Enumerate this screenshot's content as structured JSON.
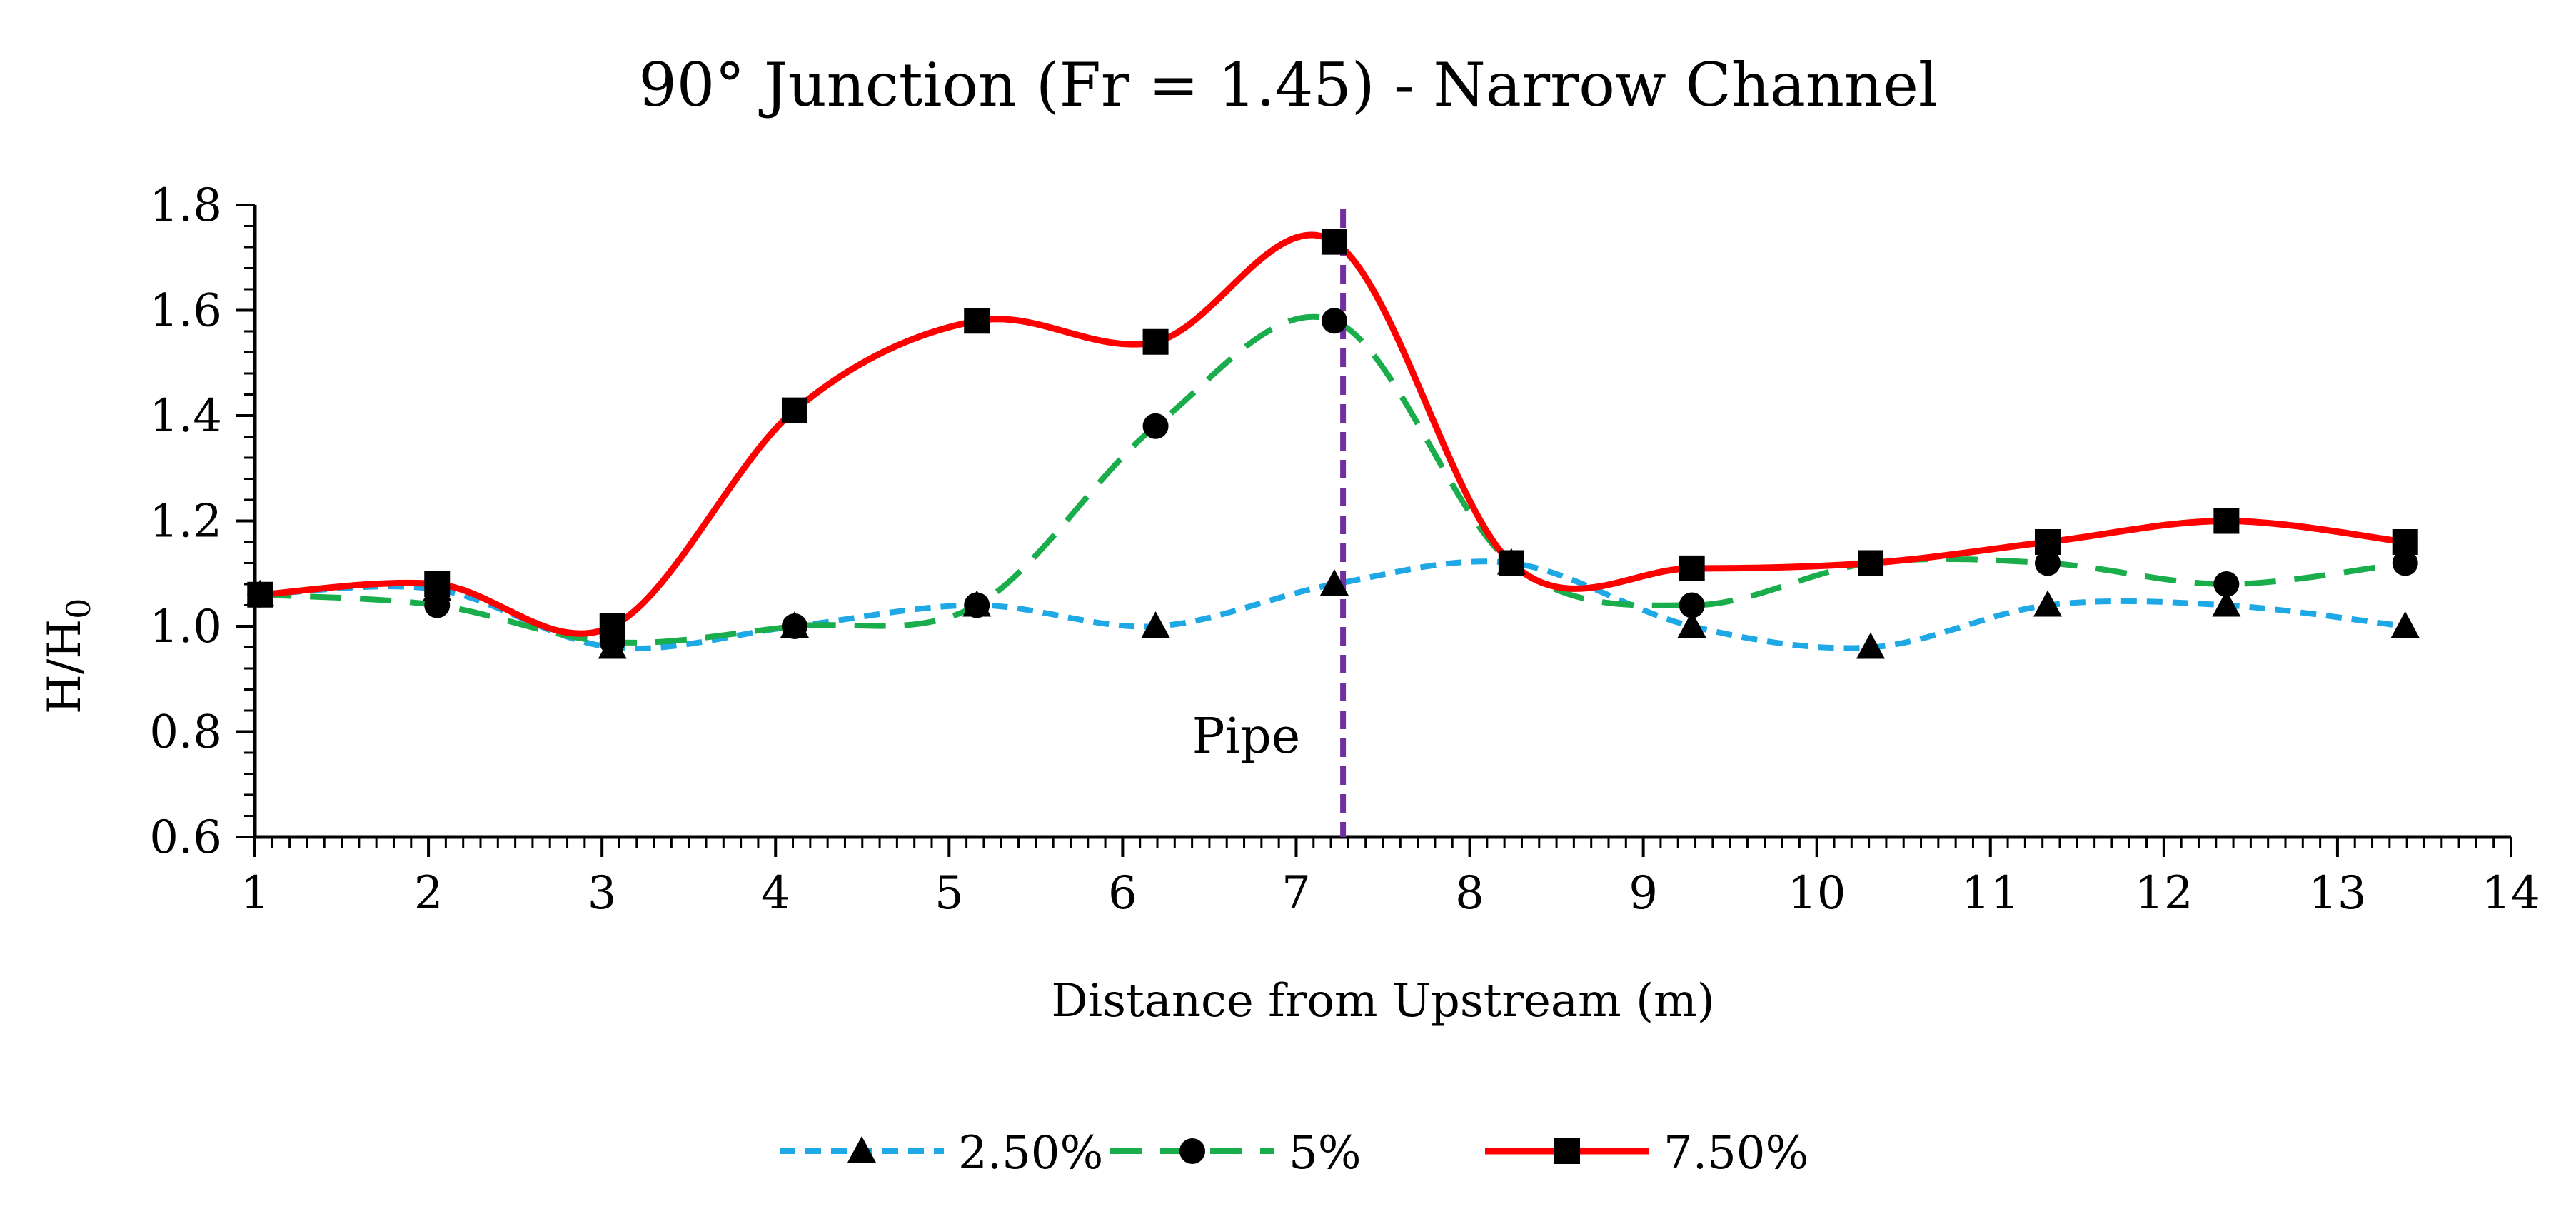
{
  "chart_data": {
    "type": "line",
    "title": "90° Junction (Fr = 1.45) - Narrow Channel",
    "xlabel": "Distance from Upstream (m)",
    "ylabel_main": "H/H",
    "ylabel_sub": "0",
    "xlim": [
      1,
      14
    ],
    "ylim": [
      0.6,
      1.8
    ],
    "xticks": [
      1,
      2,
      3,
      4,
      5,
      6,
      7,
      8,
      9,
      10,
      11,
      12,
      13,
      14
    ],
    "yticks": [
      "0.6",
      "0.8",
      "1.0",
      "1.2",
      "1.4",
      "1.6",
      "1.8"
    ],
    "grid": false,
    "legend_position": "bottom",
    "series": [
      {
        "name": "2.50%",
        "color": "#1ea8e6",
        "style": "dotted",
        "marker": "triangle",
        "x": [
          1.03,
          2.05,
          3.06,
          4.11,
          5.16,
          6.19,
          7.22,
          8.24,
          9.28,
          10.31,
          11.33,
          12.36,
          13.39
        ],
        "y": [
          1.06,
          1.07,
          0.96,
          1.0,
          1.04,
          1.0,
          1.08,
          1.12,
          1.0,
          0.96,
          1.04,
          1.04,
          1.0
        ]
      },
      {
        "name": "5%",
        "color": "#19ad4c",
        "style": "dashed",
        "marker": "circle",
        "x": [
          1.03,
          2.05,
          3.06,
          4.11,
          5.16,
          6.19,
          7.22,
          8.24,
          9.28,
          10.31,
          11.33,
          12.36,
          13.39
        ],
        "y": [
          1.06,
          1.04,
          0.97,
          1.0,
          1.04,
          1.38,
          1.58,
          1.12,
          1.04,
          1.12,
          1.12,
          1.08,
          1.12
        ]
      },
      {
        "name": "7.50%",
        "color": "#ff0000",
        "style": "solid",
        "marker": "square",
        "x": [
          1.03,
          2.05,
          3.06,
          4.11,
          5.16,
          6.19,
          7.22,
          8.24,
          9.28,
          10.31,
          11.33,
          12.36,
          13.39
        ],
        "y": [
          1.06,
          1.08,
          1.0,
          1.41,
          1.58,
          1.54,
          1.73,
          1.12,
          1.11,
          1.12,
          1.16,
          1.2,
          1.16
        ]
      }
    ],
    "reference_line": {
      "label": "Pipe",
      "x": 7.27,
      "color": "#7030a0"
    }
  }
}
